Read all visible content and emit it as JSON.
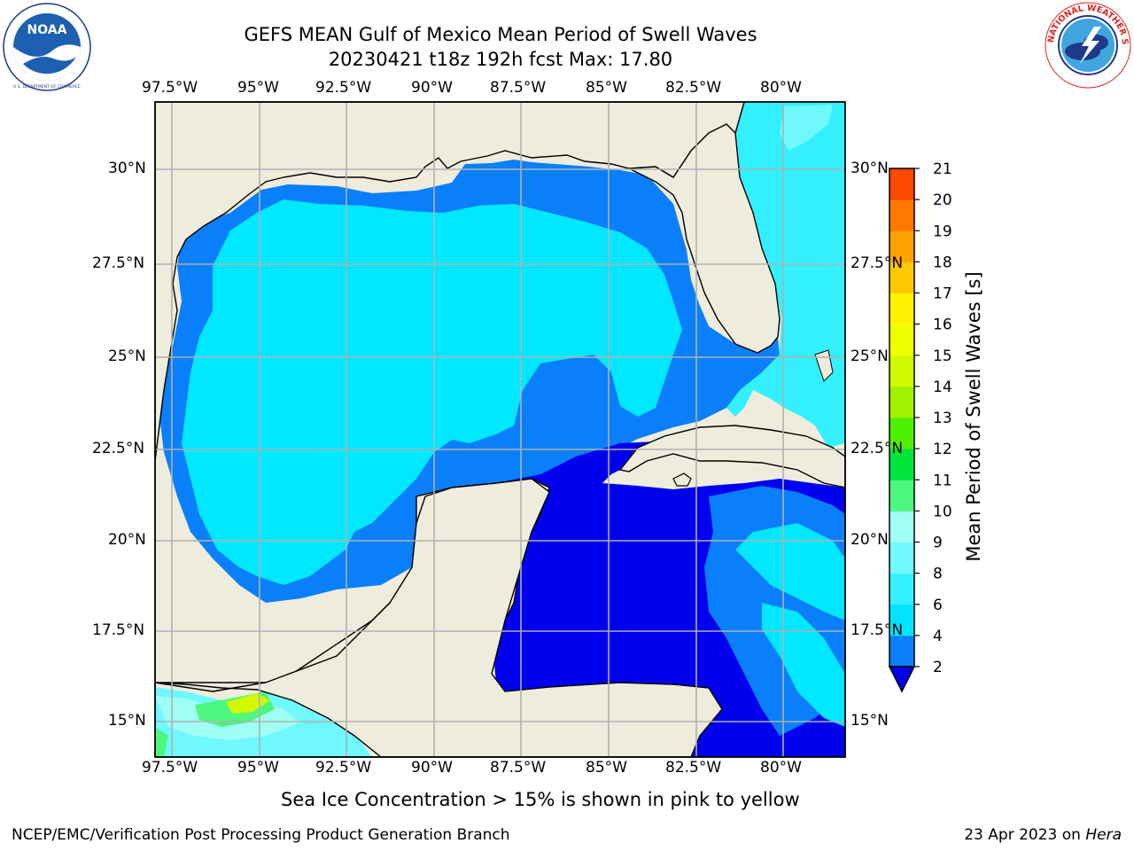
{
  "header": {
    "title": "GEFS MEAN Gulf of Mexico Mean Period of Swell Waves",
    "subtitle": "20230421 t18z 192h fcst   Max: 17.80"
  },
  "logos": {
    "left": "NOAA",
    "left_ring_text": "NATIONAL OCEANIC AND ATMOSPHERIC ADMINISTRATION",
    "left_ring_text_bottom": "U.S. DEPARTMENT OF COMMERCE",
    "right_ring_text": "NATIONAL WEATHER SERVICE"
  },
  "map": {
    "lon_ticks": [
      "97.5°W",
      "95°W",
      "92.5°W",
      "90°W",
      "87.5°W",
      "85°W",
      "82.5°W",
      "80°W"
    ],
    "lat_ticks_left": [
      "30°N",
      "27.5°N",
      "25°N",
      "22.5°N",
      "20°N",
      "17.5°N",
      "15°N"
    ],
    "lat_ticks_right": [
      "30°N",
      "27.5°N",
      "25°N",
      "22.5°N",
      "20°N",
      "17.5°N",
      "15°N"
    ],
    "lon_range": [
      -98,
      -78.5
    ],
    "lat_range": [
      14,
      32
    ],
    "land_color": "#eeecdc",
    "grid": true
  },
  "colorbar": {
    "label": "Mean Period of Swell Waves [s]",
    "ticks": [
      "2",
      "4",
      "6",
      "8",
      "9",
      "10",
      "11",
      "12",
      "13",
      "14",
      "15",
      "16",
      "17",
      "18",
      "19",
      "20",
      "21"
    ],
    "colors": [
      "#0a7ffb",
      "#00e4ff",
      "#33f0ff",
      "#70f8ff",
      "#a0fff4",
      "#4df77f",
      "#00e43c",
      "#4cf000",
      "#a0f200",
      "#d2f800",
      "#eeff00",
      "#fff200",
      "#ffc800",
      "#ffa200",
      "#ff7800",
      "#ff4800",
      "#ff2000",
      "#ff0000"
    ],
    "under_color": "#0000ee"
  },
  "notes": {
    "sea_ice": "Sea Ice Concentration > 15% is shown in pink to yellow",
    "producer": "NCEP/EMC/Verification Post Processing Product Generation Branch",
    "date": "23 Apr 2023 on ",
    "host": "Hera"
  }
}
